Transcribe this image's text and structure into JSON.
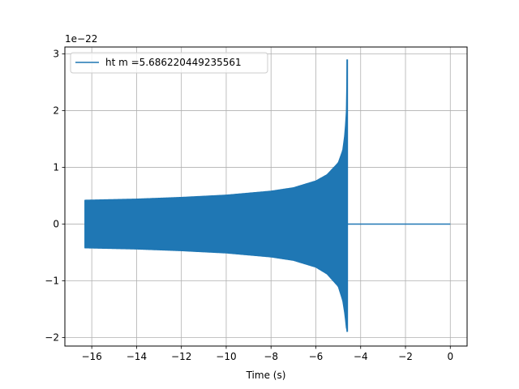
{
  "chart_data": {
    "type": "line",
    "title": "",
    "xlabel": "Time (s)",
    "ylabel": "",
    "y_offset_text": "1e−22",
    "xlim": [
      -17.2,
      0.75
    ],
    "ylim": [
      -2.15,
      3.12
    ],
    "x_ticks": [
      -16,
      -14,
      -12,
      -10,
      -8,
      -6,
      -4,
      -2,
      0
    ],
    "x_tick_labels": [
      "−16",
      "−14",
      "−12",
      "−10",
      "−8",
      "−6",
      "−4",
      "−2",
      "0"
    ],
    "y_ticks": [
      -2,
      -1,
      0,
      1,
      2,
      3
    ],
    "y_tick_labels": [
      "−2",
      "−1",
      "0",
      "1",
      "2",
      "3"
    ],
    "grid": true,
    "legend_position": "top-left",
    "series": [
      {
        "name": "ht m =5.686220449235561",
        "color": "#1f77b4",
        "start_time": -16.3,
        "merger_time": -4.6,
        "end_time": 0.0,
        "envelope_upper": [
          [
            -16.3,
            0.42
          ],
          [
            -14.0,
            0.44
          ],
          [
            -12.0,
            0.47
          ],
          [
            -10.0,
            0.51
          ],
          [
            -8.0,
            0.58
          ],
          [
            -7.0,
            0.64
          ],
          [
            -6.0,
            0.76
          ],
          [
            -5.5,
            0.87
          ],
          [
            -5.0,
            1.08
          ],
          [
            -4.8,
            1.3
          ],
          [
            -4.7,
            1.6
          ],
          [
            -4.62,
            2.1
          ],
          [
            -4.6,
            2.9
          ]
        ],
        "envelope_lower": [
          [
            -16.3,
            -0.42
          ],
          [
            -14.0,
            -0.44
          ],
          [
            -12.0,
            -0.47
          ],
          [
            -10.0,
            -0.51
          ],
          [
            -8.0,
            -0.58
          ],
          [
            -7.0,
            -0.64
          ],
          [
            -6.0,
            -0.76
          ],
          [
            -5.5,
            -0.88
          ],
          [
            -5.0,
            -1.1
          ],
          [
            -4.8,
            -1.35
          ],
          [
            -4.7,
            -1.6
          ],
          [
            -4.62,
            -1.9
          ],
          [
            -4.6,
            -1.88
          ]
        ],
        "post_merger_value": 0.0
      }
    ]
  }
}
